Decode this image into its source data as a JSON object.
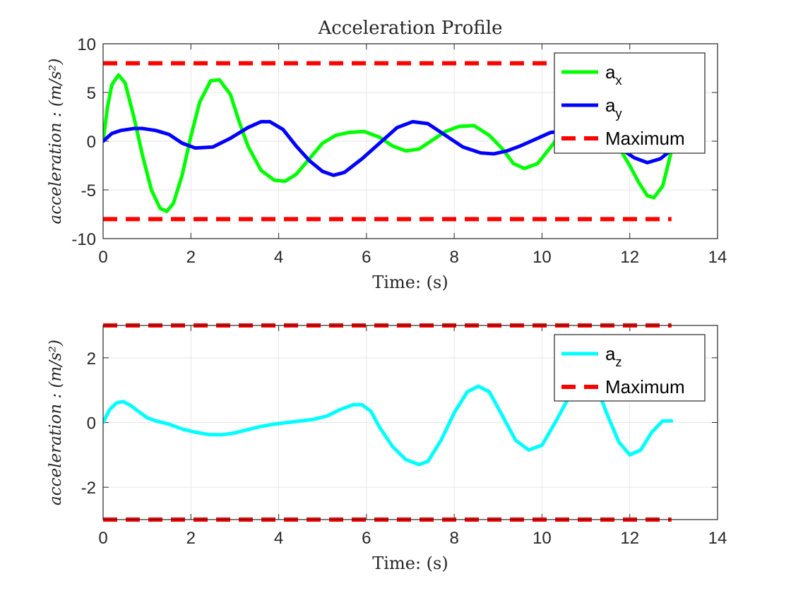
{
  "figure": {
    "background": "#ffffff"
  },
  "chart_data": [
    {
      "type": "line",
      "title": "Acceleration Profile",
      "xlabel": "Time: (s)",
      "ylabel": "acceleration : (m/s²)",
      "xlim": [
        0,
        14
      ],
      "ylim": [
        -10,
        10
      ],
      "xticks": [
        "0",
        "2",
        "4",
        "6",
        "8",
        "10",
        "12",
        "14"
      ],
      "yticks": [
        "-10",
        "-5",
        "0",
        "5",
        "10"
      ],
      "grid": true,
      "legend_position": "top-right",
      "series": [
        {
          "name": "a",
          "name_sub": "x",
          "color": "#00ff00",
          "style": "solid",
          "x": [
            0,
            0.1,
            0.2,
            0.35,
            0.5,
            0.7,
            0.9,
            1.1,
            1.3,
            1.45,
            1.6,
            1.8,
            2.0,
            2.2,
            2.45,
            2.65,
            2.9,
            3.1,
            3.3,
            3.6,
            3.9,
            4.15,
            4.4,
            4.7,
            5.0,
            5.3,
            5.6,
            5.95,
            6.3,
            6.6,
            6.9,
            7.2,
            7.5,
            7.8,
            8.1,
            8.45,
            8.8,
            9.1,
            9.35,
            9.6,
            9.9,
            10.2,
            10.45,
            10.6,
            11.0,
            11.4,
            11.8,
            12.0,
            12.2,
            12.4,
            12.55,
            12.75,
            12.95
          ],
          "y": [
            0,
            3.5,
            5.8,
            6.8,
            6.0,
            2.5,
            -1.5,
            -5.0,
            -6.9,
            -7.2,
            -6.4,
            -3.5,
            0.5,
            4.0,
            6.2,
            6.3,
            4.8,
            2.0,
            -0.5,
            -3.0,
            -4.0,
            -4.1,
            -3.4,
            -1.8,
            -0.2,
            0.6,
            0.9,
            1.0,
            0.4,
            -0.5,
            -1.0,
            -0.8,
            0.1,
            1.0,
            1.5,
            1.6,
            0.6,
            -0.8,
            -2.3,
            -2.8,
            -2.3,
            -0.6,
            0.9,
            1.2,
            1.0,
            0.5,
            -1.0,
            -2.5,
            -4.2,
            -5.6,
            -5.8,
            -4.6,
            -1.0
          ]
        },
        {
          "name": "a",
          "name_sub": "y",
          "color": "#0000ff",
          "style": "solid",
          "x": [
            0,
            0.2,
            0.4,
            0.7,
            0.9,
            1.2,
            1.5,
            1.8,
            2.1,
            2.5,
            2.9,
            3.3,
            3.6,
            3.8,
            4.1,
            4.4,
            4.7,
            5.0,
            5.25,
            5.5,
            5.9,
            6.3,
            6.7,
            7.05,
            7.4,
            7.8,
            8.2,
            8.6,
            8.9,
            9.2,
            9.5,
            9.9,
            10.2,
            10.6,
            10.9,
            11.2,
            11.5,
            11.8,
            12.1,
            12.4,
            12.7,
            12.95
          ],
          "y": [
            0,
            0.8,
            1.1,
            1.3,
            1.3,
            1.1,
            0.7,
            -0.2,
            -0.7,
            -0.6,
            0.3,
            1.4,
            2.0,
            2.0,
            1.2,
            -0.5,
            -2.0,
            -3.1,
            -3.5,
            -3.2,
            -1.8,
            -0.2,
            1.4,
            2.0,
            1.8,
            0.6,
            -0.6,
            -1.2,
            -1.3,
            -1.0,
            -0.5,
            0.3,
            0.9,
            1.1,
            1.1,
            0.8,
            0.1,
            -0.8,
            -1.7,
            -2.2,
            -1.8,
            -0.9
          ]
        },
        {
          "name": "Maximum",
          "color": "#ff0000",
          "style": "dashed",
          "x": [
            0,
            12.95
          ],
          "y": [
            8,
            8
          ]
        },
        {
          "name": "",
          "legend": false,
          "color": "#ff0000",
          "style": "dashed",
          "x": [
            0,
            12.95
          ],
          "y": [
            -8,
            -8
          ]
        }
      ]
    },
    {
      "type": "line",
      "title": "",
      "xlabel": "Time: (s)",
      "ylabel": "acceleration : (m/s²)",
      "xlim": [
        0,
        14
      ],
      "ylim": [
        -3,
        3
      ],
      "xticks": [
        "0",
        "2",
        "4",
        "6",
        "8",
        "10",
        "12",
        "14"
      ],
      "yticks": [
        "-2",
        "0",
        "2"
      ],
      "ytick_values": [
        -2,
        0,
        2
      ],
      "grid": true,
      "legend_position": "top-right",
      "series": [
        {
          "name": "a",
          "name_sub": "z",
          "color": "#00ffff",
          "style": "solid",
          "x": [
            0,
            0.15,
            0.3,
            0.45,
            0.6,
            0.8,
            1.0,
            1.2,
            1.5,
            1.8,
            2.1,
            2.4,
            2.7,
            3.0,
            3.3,
            3.6,
            3.9,
            4.2,
            4.5,
            4.8,
            5.1,
            5.4,
            5.7,
            5.9,
            6.1,
            6.3,
            6.6,
            6.9,
            7.2,
            7.4,
            7.7,
            8.0,
            8.3,
            8.55,
            8.8,
            9.1,
            9.4,
            9.7,
            10.0,
            10.3,
            10.6,
            10.9,
            11.1,
            11.3,
            11.5,
            11.75,
            12.0,
            12.25,
            12.5,
            12.75,
            12.95
          ],
          "y": [
            0,
            0.4,
            0.6,
            0.65,
            0.55,
            0.35,
            0.15,
            0.05,
            -0.05,
            -0.2,
            -0.3,
            -0.37,
            -0.38,
            -0.32,
            -0.22,
            -0.12,
            -0.05,
            0,
            0.05,
            0.1,
            0.2,
            0.4,
            0.55,
            0.55,
            0.35,
            -0.15,
            -0.75,
            -1.15,
            -1.3,
            -1.2,
            -0.55,
            0.3,
            0.95,
            1.12,
            0.95,
            0.2,
            -0.55,
            -0.85,
            -0.7,
            0.0,
            0.75,
            1.1,
            1.2,
            0.9,
            0.2,
            -0.6,
            -1.0,
            -0.85,
            -0.3,
            0.05,
            0.05
          ]
        },
        {
          "name": "Maximum",
          "color": "#ff0000",
          "style": "dashed",
          "x": [
            0,
            12.95
          ],
          "y": [
            3,
            3
          ]
        },
        {
          "name": "",
          "legend": false,
          "color": "#ff0000",
          "style": "dashed",
          "x": [
            0,
            12.95
          ],
          "y": [
            -3,
            -3
          ]
        }
      ]
    }
  ]
}
